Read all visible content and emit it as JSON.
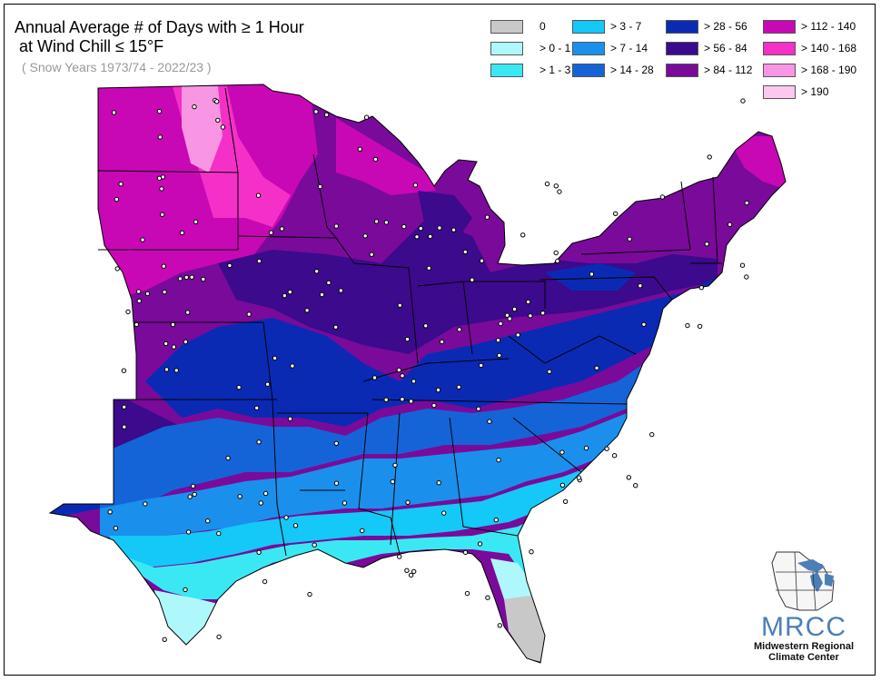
{
  "title": {
    "line1": "Annual Average # of Days with ≥ 1 Hour",
    "line2": " at Wind Chill ≤ 15°F",
    "subtitle": "( Snow Years 1973/74 - 2022/23 )"
  },
  "legend": [
    {
      "label": "0",
      "color": "#c8c8c8"
    },
    {
      "label": "> 0 - 1",
      "color": "#aef8fc"
    },
    {
      "label": "> 1 - 3",
      "color": "#3ae8f4"
    },
    {
      "label": "> 3 - 7",
      "color": "#14c8f8"
    },
    {
      "label": "> 7 - 14",
      "color": "#1a90ec"
    },
    {
      "label": "> 14 - 28",
      "color": "#1464d8"
    },
    {
      "label": "> 28 - 56",
      "color": "#0a2ab4"
    },
    {
      "label": "> 56 - 84",
      "color": "#3c0a8c"
    },
    {
      "label": "> 84 - 112",
      "color": "#7a0a9a"
    },
    {
      "label": "> 112 - 140",
      "color": "#c808b4"
    },
    {
      "label": "> 140 - 168",
      "color": "#f430c8"
    },
    {
      "label": "> 168 - 190",
      "color": "#f896e4"
    },
    {
      "label": "> 190",
      "color": "#fcc8f0"
    }
  ],
  "logo": {
    "acronym": "MRCC",
    "name_line1": "Midwestern Regional",
    "name_line2": "Climate Center",
    "color": "#4b7fb8"
  }
}
